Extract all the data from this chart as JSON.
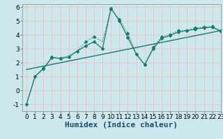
{
  "xlabel": "Humidex (Indice chaleur)",
  "bg_color": "#cce8ec",
  "line_color": "#1a7a6e",
  "grid_color": "#e8c8c8",
  "xlim": [
    -0.5,
    23
  ],
  "ylim": [
    -1.5,
    6.2
  ],
  "yticks": [
    -1,
    0,
    1,
    2,
    3,
    4,
    5,
    6
  ],
  "xticks": [
    0,
    1,
    2,
    3,
    4,
    5,
    6,
    7,
    8,
    9,
    10,
    11,
    12,
    13,
    14,
    15,
    16,
    17,
    18,
    19,
    20,
    21,
    22,
    23
  ],
  "series1_x": [
    0,
    1,
    2,
    3,
    4,
    5,
    6,
    7,
    8,
    9,
    10,
    11,
    12,
    13,
    14,
    15,
    16,
    17,
    18,
    19,
    20,
    21,
    22,
    23
  ],
  "series1_y": [
    -1.0,
    1.0,
    1.6,
    2.4,
    2.3,
    2.5,
    2.85,
    3.5,
    3.85,
    3.5,
    5.85,
    5.1,
    4.1,
    2.6,
    1.85,
    3.1,
    3.85,
    4.0,
    4.3,
    4.3,
    4.5,
    4.55,
    4.6,
    4.3
  ],
  "series1_marker_x": [
    2,
    3,
    4,
    7,
    8,
    10,
    11,
    12,
    14,
    15,
    16,
    17,
    18,
    19,
    20,
    21,
    22,
    23
  ],
  "series1_marker_y": [
    1.6,
    2.4,
    2.3,
    3.5,
    3.85,
    5.85,
    5.1,
    4.1,
    1.85,
    3.1,
    3.85,
    4.0,
    4.3,
    4.3,
    4.5,
    4.55,
    4.6,
    4.3
  ],
  "series2_x": [
    0,
    1,
    2,
    3,
    4,
    5,
    6,
    7,
    8,
    9,
    10,
    11,
    12,
    13,
    14,
    15,
    16,
    17,
    18,
    19,
    20,
    21,
    22,
    23
  ],
  "series2_y": [
    -1.0,
    1.0,
    1.55,
    2.35,
    2.3,
    2.4,
    2.82,
    3.2,
    3.5,
    3.0,
    5.9,
    5.0,
    3.8,
    2.6,
    1.85,
    3.0,
    3.75,
    3.95,
    4.2,
    4.3,
    4.4,
    4.5,
    4.55,
    4.25
  ],
  "series3_x": [
    0,
    23
  ],
  "series3_y": [
    1.5,
    4.3
  ],
  "tick_fontsize": 6.5,
  "xlabel_fontsize": 8
}
